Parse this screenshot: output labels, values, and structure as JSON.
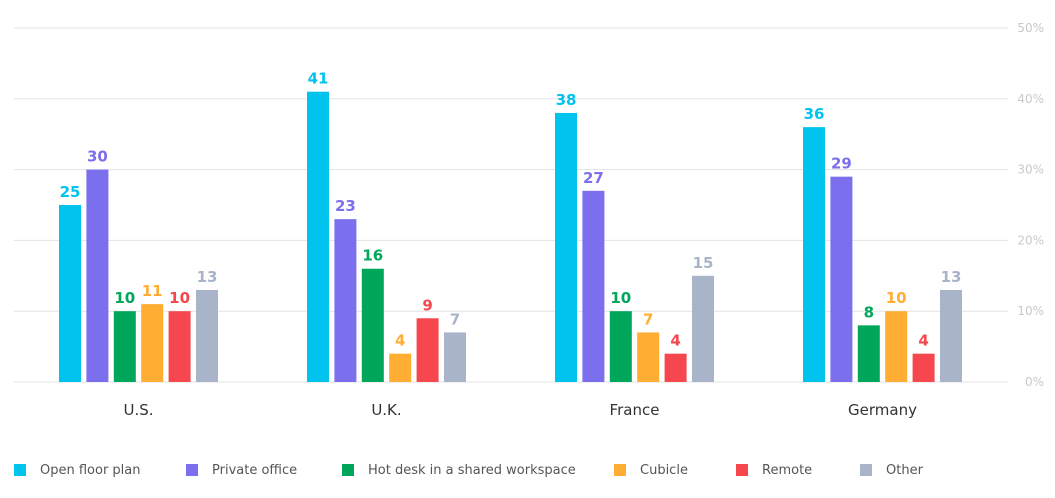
{
  "chart_data": {
    "type": "bar",
    "categories": [
      "U.S.",
      "U.K.",
      "France",
      "Germany"
    ],
    "series": [
      {
        "name": "Open floor plan",
        "color": "#00c3ee",
        "values": [
          25,
          41,
          38,
          36
        ]
      },
      {
        "name": "Private office",
        "color": "#7b6fee",
        "values": [
          30,
          23,
          27,
          29
        ]
      },
      {
        "name": "Hot desk in a shared workspace",
        "color": "#00a65a",
        "values": [
          10,
          16,
          10,
          8
        ]
      },
      {
        "name": "Cubicle",
        "color": "#ffad33",
        "values": [
          11,
          4,
          7,
          10
        ]
      },
      {
        "name": "Remote",
        "color": "#f5474d",
        "values": [
          10,
          9,
          4,
          4
        ]
      },
      {
        "name": "Other",
        "color": "#a9b4c9",
        "values": [
          13,
          7,
          15,
          13
        ]
      }
    ],
    "yticks": [
      "0%",
      "10%",
      "20%",
      "30%",
      "40%",
      "50%"
    ],
    "ylim": [
      0,
      50
    ],
    "y_axis_side": "right",
    "grid": true,
    "legend_position": "bottom",
    "data_labels": true
  }
}
